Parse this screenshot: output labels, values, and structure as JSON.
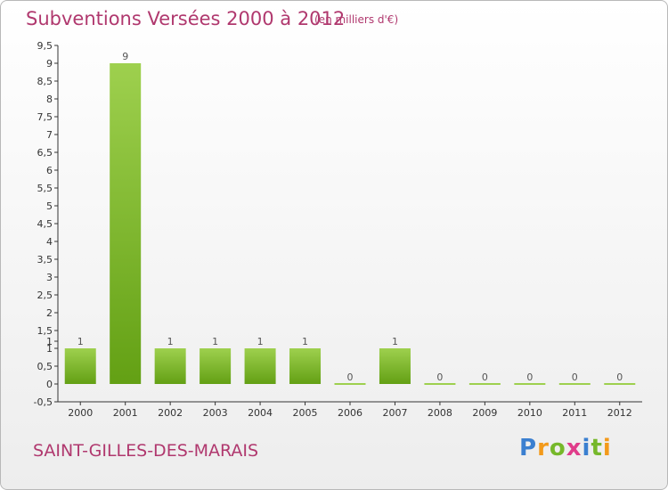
{
  "chart_data": {
    "type": "bar",
    "title": "Subventions Versées 2000 à 2012",
    "subtitle": "(en milliers d'€)",
    "categories": [
      "2000",
      "2001",
      "2002",
      "2003",
      "2004",
      "2005",
      "2006",
      "2007",
      "2008",
      "2009",
      "2010",
      "2011",
      "2012"
    ],
    "values": [
      1,
      9,
      1,
      1,
      1,
      1,
      0,
      1,
      0,
      0,
      0,
      0,
      0
    ],
    "data_labels": [
      "1",
      "9",
      "1",
      "1",
      "1",
      "1",
      "0",
      "1",
      "0",
      "0",
      "0",
      "0",
      "0"
    ],
    "ylim": [
      -0.5,
      9.5
    ],
    "yticks": [
      "-0,5",
      "0",
      "0,5",
      "1",
      "1,5",
      "2",
      "2,5",
      "3",
      "3,5",
      "4",
      "4,5",
      "5",
      "5,5",
      "6",
      "6,5",
      "7",
      "7,5",
      "8",
      "8,5",
      "9",
      "9,5"
    ],
    "ytick_values": [
      -0.5,
      0,
      0.5,
      1,
      1.5,
      2,
      2.5,
      3,
      3.5,
      4,
      4.5,
      5,
      5.5,
      6,
      6.5,
      7,
      7.5,
      8,
      8.5,
      9,
      9.5
    ],
    "extra_ytick": {
      "label": "1",
      "value": 1.0
    },
    "xlabel": "",
    "ylabel": "",
    "grid": false,
    "bar_color_light": "#9ed04e",
    "bar_color_dark": "#63a014"
  },
  "commune": "SAINT-GILLES-DES-MARAIS",
  "logo": {
    "letters": [
      "P",
      "r",
      "o",
      "x",
      "i",
      "t",
      "i"
    ],
    "colors": [
      "#3a7fd0",
      "#f39a1b",
      "#76b82a",
      "#e03c8a",
      "#3a7fd0",
      "#76b82a",
      "#f39a1b"
    ]
  }
}
